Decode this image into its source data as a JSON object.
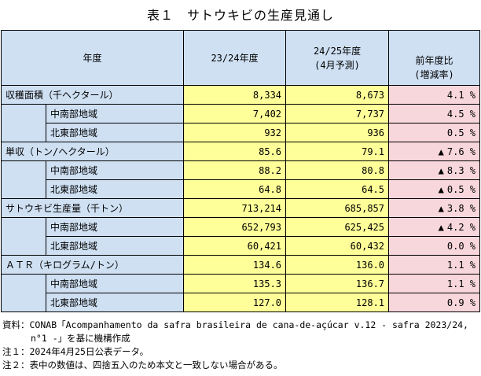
{
  "title": "表１　サトウキビの生産見通し",
  "header": {
    "col_year": "年度",
    "col_2324": "23/24年度",
    "col_2425_line1": "24/25年度",
    "col_2425_line2": "(4月予測)",
    "col_change_line1": "前年度比",
    "col_change_line2": "(増減率)"
  },
  "rows": [
    {
      "label": "収穫面積（千ヘクタール）",
      "v2324": "8,334",
      "v2425": "8,673",
      "neg": false,
      "change": "4.1 %"
    },
    {
      "label": "中南部地域",
      "v2324": "7,402",
      "v2425": "7,737",
      "neg": false,
      "change": "4.5 %"
    },
    {
      "label": "北東部地域",
      "v2324": "932",
      "v2425": "936",
      "neg": false,
      "change": "0.5 %"
    },
    {
      "label": "単収（トン/ヘクタール）",
      "v2324": "85.6",
      "v2425": "79.1",
      "neg": true,
      "change": "7.6 %"
    },
    {
      "label": "中南部地域",
      "v2324": "88.2",
      "v2425": "80.8",
      "neg": true,
      "change": "8.3 %"
    },
    {
      "label": "北東部地域",
      "v2324": "64.8",
      "v2425": "64.5",
      "neg": true,
      "change": "0.5 %"
    },
    {
      "label": "サトウキビ生産量（千トン）",
      "v2324": "713,214",
      "v2425": "685,857",
      "neg": true,
      "change": "3.8 %"
    },
    {
      "label": "中南部地域",
      "v2324": "652,793",
      "v2425": "625,425",
      "neg": true,
      "change": "4.2 %"
    },
    {
      "label": "北東部地域",
      "v2324": "60,421",
      "v2425": "60,432",
      "neg": false,
      "change": "0.0 %"
    },
    {
      "label": "ＡＴＲ（キログラム/トン）",
      "v2324": "134.6",
      "v2425": "136.0",
      "neg": false,
      "change": "1.1 %"
    },
    {
      "label": "中南部地域",
      "v2324": "135.3",
      "v2425": "136.7",
      "neg": false,
      "change": "1.1 %"
    },
    {
      "label": "北東部地域",
      "v2324": "127.0",
      "v2425": "128.1",
      "neg": false,
      "change": "0.9 %"
    }
  ],
  "negative_marker": "▲",
  "notes": {
    "source_line1": "資料：CONAB「Acompanhamento da safra brasileira de cana-de-açúcar v.12 - safra 2023/24,",
    "source_line2": "n°1 -」を基に機構作成",
    "note1": "注１：2024年4月25日公表データ。",
    "note2": "注２：表中の数値は、四捨五入のため本文と一致しない場合がある。"
  },
  "colors": {
    "header_bg": "#cfe0f3",
    "value_bg": "#ffff99",
    "change_bg": "#f7d6dc"
  }
}
